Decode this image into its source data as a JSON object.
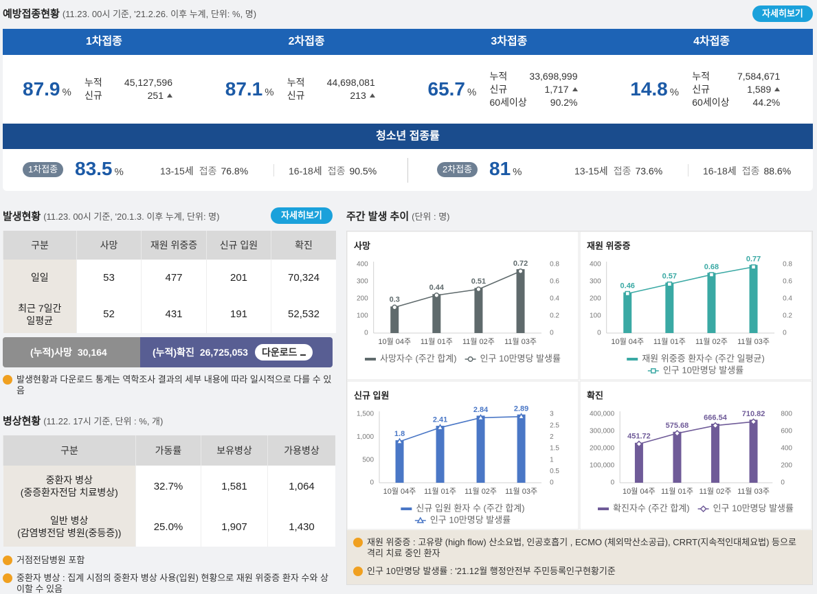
{
  "vaccination": {
    "title": "예방접종현황",
    "subtitle": "(11.23. 00시 기준, '21.2.26. 이후 누계, 단위: %, 명)",
    "button": "자세히보기",
    "doses": [
      {
        "name": "1차접종",
        "rate": "87.9",
        "unit": "%",
        "rows": [
          {
            "label": "누적",
            "value": "45,127,596"
          },
          {
            "label": "신규",
            "value": "251",
            "trend": "up"
          }
        ]
      },
      {
        "name": "2차접종",
        "rate": "87.1",
        "unit": "%",
        "rows": [
          {
            "label": "누적",
            "value": "44,698,081"
          },
          {
            "label": "신규",
            "value": "213",
            "trend": "up"
          }
        ]
      },
      {
        "name": "3차접종",
        "rate": "65.7",
        "unit": "%",
        "rows": [
          {
            "label": "누적",
            "value": "33,698,999"
          },
          {
            "label": "신규",
            "value": "1,717",
            "trend": "up"
          },
          {
            "label": "60세이상",
            "value": "90.2%"
          }
        ]
      },
      {
        "name": "4차접종",
        "rate": "14.8",
        "unit": "%",
        "rows": [
          {
            "label": "누적",
            "value": "7,584,671"
          },
          {
            "label": "신규",
            "value": "1,589",
            "trend": "up"
          },
          {
            "label": "60세이상",
            "value": "44.2%"
          }
        ]
      }
    ],
    "youth": {
      "title": "청소년 접종률",
      "groups": [
        {
          "badge": "1차접종",
          "rate": "83.5",
          "unit": "%",
          "ages": [
            {
              "age": "13-15세",
              "label": "접종",
              "value": "76.8%"
            },
            {
              "age": "16-18세",
              "label": "접종",
              "value": "90.5%"
            }
          ]
        },
        {
          "badge": "2차접종",
          "rate": "81",
          "unit": "%",
          "ages": [
            {
              "age": "13-15세",
              "label": "접종",
              "value": "73.6%"
            },
            {
              "age": "16-18세",
              "label": "접종",
              "value": "88.6%"
            }
          ]
        }
      ]
    }
  },
  "occurrence": {
    "title": "발생현황",
    "subtitle": "(11.23. 00시 기준, '20.1.3. 이후 누계, 단위: 명)",
    "button": "자세히보기",
    "table": {
      "header": [
        "구분",
        "사망",
        "재원 위중증",
        "신규 입원",
        "확진"
      ],
      "rows": [
        [
          "일일",
          "53",
          "477",
          "201",
          "70,324"
        ],
        [
          [
            "최근 7일간",
            "일평균"
          ],
          "52",
          "431",
          "191",
          "52,532"
        ]
      ]
    },
    "totals": [
      {
        "label": "(누적)사망",
        "value": "30,164"
      },
      {
        "label": "(누적)확진",
        "value": "26,725,053"
      }
    ],
    "download": "다운로드",
    "notes": [
      "발생현황과 다운로드 통계는 역학조사 결과의 세부 내용에 따라 일시적으로 다를 수 있음"
    ]
  },
  "beds": {
    "title": "병상현황",
    "subtitle": "(11.22. 17시 기준, 단위 : %, 개)",
    "table": {
      "header": [
        "구분",
        "가동률",
        "보유병상",
        "가용병상"
      ],
      "rows": [
        [
          [
            "중환자 병상",
            "(중증환자전담 치료병상)"
          ],
          "32.7%",
          "1,581",
          "1,064"
        ],
        [
          [
            "일반 병상",
            "(감염병전담 병원(중등증))"
          ],
          "25.0%",
          "1,907",
          "1,430"
        ]
      ]
    },
    "notes": [
      "거점전담병원 포함",
      "중환자 병상 : 집계 시점의 중환자 병상 사용(입원) 현황으로 재원 위중증 환자 수와 상이할 수 있음"
    ]
  },
  "weekly": {
    "title": "주간 발생 추이",
    "subtitle": "(단위 : 명)",
    "notes": [
      "재원 위중증 : 고유량 (high flow) 산소요법, 인공호흡기 , ECMO (체외막산소공급), CRRT(지속적인대체요법) 등으로 격리 치료 중인 환자",
      "인구 10만명당 발생률 : '21.12월 행정안전부 주민등록인구현황기준"
    ]
  },
  "chart_data": [
    {
      "type": "combo",
      "title": "사망",
      "categories": [
        "10월 04주",
        "11월 01주",
        "11월 02주",
        "11월 03주"
      ],
      "series": [
        {
          "name": "사망자수 (주간 합계)",
          "type": "bar",
          "color": "#5f6a6c",
          "values": [
            155,
            227,
            263,
            372
          ]
        },
        {
          "name": "인구 10만명당 발생률",
          "type": "line",
          "axis": "y2",
          "marker": "circle",
          "color": "#5f6a6c",
          "values": [
            0.3,
            0.44,
            0.51,
            0.72
          ]
        }
      ],
      "ylim": [
        0,
        400
      ],
      "yticks": [
        0,
        100,
        200,
        300,
        400
      ],
      "y2lim": [
        0,
        0.8
      ],
      "y2ticks": [
        0,
        0.2,
        0.4,
        0.6,
        0.8
      ],
      "grid": false
    },
    {
      "type": "combo",
      "title": "재원 위중증",
      "categories": [
        "10월 04주",
        "11월 01주",
        "11월 02주",
        "11월 03주"
      ],
      "series": [
        {
          "name": "재원 위중증 환자수 (주간 일평균)",
          "type": "bar",
          "color": "#3aa9a4",
          "values": [
            237,
            294,
            351,
            397
          ]
        },
        {
          "name": "인구 10만명당 발생률",
          "type": "line",
          "axis": "y2",
          "marker": "square",
          "color": "#3aa9a4",
          "values": [
            0.46,
            0.57,
            0.68,
            0.77
          ]
        }
      ],
      "ylim": [
        0,
        400
      ],
      "yticks": [
        0,
        100,
        200,
        300,
        400
      ],
      "y2lim": [
        0,
        0.8
      ],
      "y2ticks": [
        0,
        0.2,
        0.4,
        0.6,
        0.8
      ],
      "grid": false
    },
    {
      "type": "combo",
      "title": "신규 입원",
      "categories": [
        "10월 04주",
        "11월 01주",
        "11월 02주",
        "11월 03주"
      ],
      "series": [
        {
          "name": "신규 입원 환자 수 (주간 합계)",
          "type": "bar",
          "color": "#4a77c6",
          "values": [
            929,
            1244,
            1465,
            1491
          ]
        },
        {
          "name": "인구 10만명당 발생률",
          "type": "line",
          "axis": "y2",
          "marker": "triangle",
          "color": "#4a77c6",
          "values": [
            1.8,
            2.41,
            2.84,
            2.89
          ]
        }
      ],
      "ylim": [
        0,
        1500
      ],
      "yticks": [
        0,
        500,
        {
          "value": 1000,
          "label": "1,000"
        },
        {
          "value": 1500,
          "label": "1,500"
        }
      ],
      "y2lim": [
        0,
        3
      ],
      "y2ticks": [
        0,
        0.5,
        1,
        1.5,
        2,
        2.5,
        3
      ],
      "grid": false
    },
    {
      "type": "combo",
      "title": "확진",
      "categories": [
        "10월 04주",
        "11월 01주",
        "11월 02주",
        "11월 03주"
      ],
      "series": [
        {
          "name": "확진자수 (주간 합계)",
          "type": "bar",
          "color": "#6f5b98",
          "values": [
            233000,
            297000,
            344000,
            367000
          ]
        },
        {
          "name": "인구 10만명당 발생률",
          "type": "line",
          "axis": "y2",
          "marker": "diamond",
          "color": "#6f5b98",
          "values": [
            451.72,
            575.68,
            666.54,
            710.82
          ]
        }
      ],
      "ylim": [
        0,
        400000
      ],
      "yticks": [
        0,
        {
          "value": 100000,
          "label": "100,000"
        },
        {
          "value": 200000,
          "label": "200,000"
        },
        {
          "value": 300000,
          "label": "300,000"
        },
        {
          "value": 400000,
          "label": "400,000"
        }
      ],
      "y2lim": [
        0,
        800
      ],
      "y2ticks": [
        0,
        200,
        400,
        600,
        800
      ],
      "grid": false
    }
  ]
}
